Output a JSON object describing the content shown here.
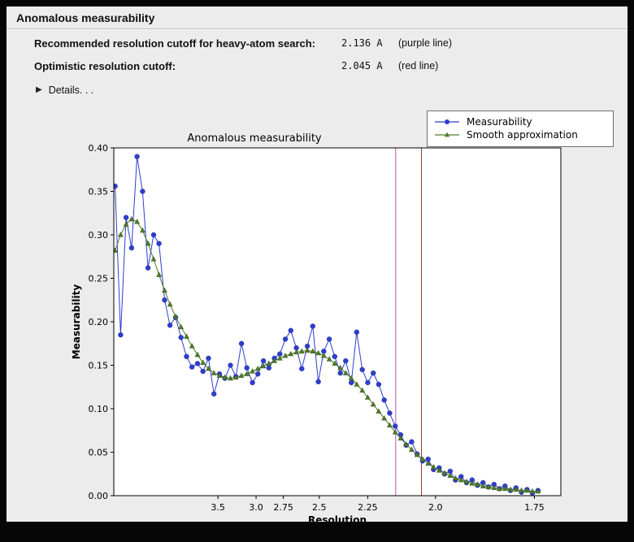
{
  "window": {
    "title": "Anomalous measurability"
  },
  "info": {
    "rows": [
      {
        "label": "Recommended resolution cutoff for heavy-atom search:",
        "value": "2.136 A",
        "note": "(purple line)"
      },
      {
        "label": "Optimistic resolution cutoff:",
        "value": "2.045 A",
        "note": "(red line)"
      }
    ],
    "details_label": "Details. . .",
    "disclosure_icon": "▶"
  },
  "colors": {
    "frame_background": "#060606",
    "window_background": "#ececec",
    "plot_background": "#ffffff",
    "axis_color": "#000000",
    "measurability_blue": "#2e3ecc",
    "smooth_green": "#4f7a28",
    "purple_line": "#b84fb8",
    "red_line": "#993b2e"
  },
  "chart_data": {
    "type": "line",
    "title": "Anomalous measurability",
    "xlabel": "Resolution",
    "ylabel": "Measurability",
    "grid": false,
    "legend_position": "top-right-outside",
    "x_axis": {
      "unit": "d_star_sq (1/resolution^2)",
      "min": 0.001,
      "max": 0.347,
      "ticks": [
        {
          "label": "3.5",
          "resolution": 3.5
        },
        {
          "label": "3.0",
          "resolution": 3.0
        },
        {
          "label": "2.75",
          "resolution": 2.75
        },
        {
          "label": "2.5",
          "resolution": 2.5
        },
        {
          "label": "2.25",
          "resolution": 2.25
        },
        {
          "label": "2.0",
          "resolution": 2.0
        },
        {
          "label": "1.75",
          "resolution": 1.75
        }
      ]
    },
    "y_axis": {
      "min": 0.0,
      "max": 0.4,
      "tick_labels": [
        "0.00",
        "0.05",
        "0.10",
        "0.15",
        "0.20",
        "0.25",
        "0.30",
        "0.35",
        "0.40"
      ]
    },
    "x_dstarsq": [
      0.002,
      0.0063,
      0.0105,
      0.0148,
      0.019,
      0.0233,
      0.0275,
      0.0318,
      0.036,
      0.0403,
      0.0445,
      0.0488,
      0.053,
      0.0573,
      0.0615,
      0.0658,
      0.07,
      0.0743,
      0.0785,
      0.0828,
      0.087,
      0.0913,
      0.0955,
      0.0998,
      0.104,
      0.1083,
      0.1125,
      0.1168,
      0.121,
      0.1253,
      0.1295,
      0.1338,
      0.138,
      0.1423,
      0.1465,
      0.1508,
      0.155,
      0.1593,
      0.1635,
      0.1678,
      0.172,
      0.1763,
      0.1805,
      0.1848,
      0.189,
      0.1933,
      0.1975,
      0.2018,
      0.206,
      0.2103,
      0.2145,
      0.2188,
      0.223,
      0.2273,
      0.2315,
      0.2358,
      0.24,
      0.2443,
      0.2485,
      0.2528,
      0.257,
      0.2613,
      0.2655,
      0.2698,
      0.274,
      0.2783,
      0.2825,
      0.2868,
      0.291,
      0.2953,
      0.2995,
      0.3038,
      0.308,
      0.3123,
      0.3165,
      0.3208,
      0.325,
      0.3293
    ],
    "series": [
      {
        "name": "Measurability",
        "color": "#2e3ecc",
        "marker": "circle",
        "values": [
          0.356,
          0.185,
          0.32,
          0.285,
          0.39,
          0.35,
          0.262,
          0.3,
          0.29,
          0.225,
          0.196,
          0.205,
          0.182,
          0.16,
          0.148,
          0.152,
          0.143,
          0.158,
          0.117,
          0.14,
          0.135,
          0.15,
          0.137,
          0.175,
          0.147,
          0.13,
          0.14,
          0.155,
          0.147,
          0.158,
          0.163,
          0.18,
          0.19,
          0.17,
          0.146,
          0.172,
          0.195,
          0.131,
          0.166,
          0.18,
          0.16,
          0.141,
          0.155,
          0.13,
          0.188,
          0.145,
          0.13,
          0.141,
          0.128,
          0.11,
          0.095,
          0.08,
          0.07,
          0.058,
          0.062,
          0.048,
          0.04,
          0.042,
          0.03,
          0.032,
          0.025,
          0.028,
          0.018,
          0.022,
          0.015,
          0.018,
          0.012,
          0.015,
          0.01,
          0.013,
          0.008,
          0.011,
          0.006,
          0.009,
          0.004,
          0.007,
          0.003,
          0.006
        ]
      },
      {
        "name": "Smooth approximation",
        "color": "#4f7a28",
        "marker": "triangle",
        "values": [
          0.282,
          0.3,
          0.312,
          0.318,
          0.315,
          0.305,
          0.29,
          0.272,
          0.254,
          0.236,
          0.22,
          0.206,
          0.194,
          0.183,
          0.172,
          0.162,
          0.153,
          0.146,
          0.141,
          0.138,
          0.136,
          0.135,
          0.136,
          0.138,
          0.14,
          0.143,
          0.146,
          0.149,
          0.152,
          0.155,
          0.158,
          0.161,
          0.163,
          0.165,
          0.166,
          0.167,
          0.166,
          0.164,
          0.161,
          0.157,
          0.152,
          0.147,
          0.141,
          0.135,
          0.128,
          0.121,
          0.113,
          0.105,
          0.097,
          0.089,
          0.081,
          0.073,
          0.066,
          0.059,
          0.053,
          0.047,
          0.042,
          0.037,
          0.033,
          0.029,
          0.026,
          0.023,
          0.02,
          0.018,
          0.016,
          0.014,
          0.013,
          0.011,
          0.01,
          0.009,
          0.008,
          0.008,
          0.007,
          0.007,
          0.006,
          0.006,
          0.005,
          0.005
        ]
      }
    ],
    "vlines": [
      {
        "name": "recommended-cutoff-line",
        "legend": "purple line",
        "resolution": 2.136,
        "color": "#b84fb8"
      },
      {
        "name": "optimistic-cutoff-line",
        "legend": "red line",
        "resolution": 2.045,
        "color": "#993b2e"
      }
    ]
  }
}
